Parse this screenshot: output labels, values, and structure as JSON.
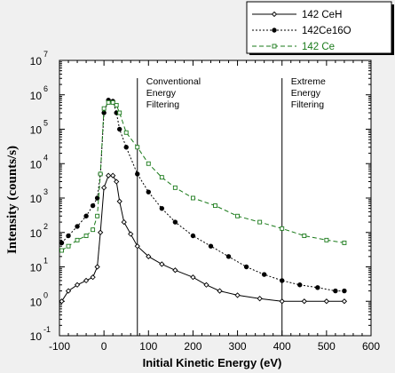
{
  "chart_data": {
    "type": "scatter",
    "title": "",
    "xlabel": "Initial Kinetic Energy (eV)",
    "ylabel": "Intensity (counts/s)",
    "xlim": [
      -100,
      600
    ],
    "ylim_log10": [
      -1,
      7
    ],
    "yscale": "log",
    "x_ticks": [
      -100,
      0,
      100,
      200,
      300,
      400,
      500,
      600
    ],
    "x_tick_labels": [
      "-100",
      "0",
      "100",
      "200",
      "300",
      "400",
      "500",
      "600"
    ],
    "y_tick_exponents": [
      -1,
      0,
      1,
      2,
      3,
      4,
      5,
      6,
      7
    ],
    "y_tick_base": "10",
    "y_tick_exp_labels": [
      "-1",
      "0",
      "1",
      "2",
      "3",
      "4",
      "5",
      "6",
      "7"
    ],
    "legend_position": "top-right",
    "series": [
      {
        "name": "142 CeH",
        "color": "#000000",
        "marker": "diamond",
        "x": [
          -95,
          -80,
          -60,
          -40,
          -25,
          -15,
          -8,
          0,
          10,
          20,
          28,
          35,
          45,
          60,
          75,
          100,
          130,
          160,
          200,
          230,
          260,
          300,
          350,
          400,
          450,
          500,
          540
        ],
        "y": [
          1.0,
          2.0,
          3.0,
          4.0,
          5.0,
          10,
          100,
          2000,
          4500,
          4500,
          3000,
          800,
          200,
          90,
          40,
          20,
          12,
          8,
          5,
          3,
          2,
          1.5,
          1.2,
          1.0,
          1.0,
          1.0,
          1.0
        ]
      },
      {
        "name": "142Ce16O",
        "color": "#000000",
        "marker": "circle",
        "x": [
          -95,
          -80,
          -60,
          -40,
          -25,
          -15,
          -8,
          0,
          10,
          20,
          28,
          35,
          50,
          75,
          100,
          130,
          160,
          200,
          240,
          280,
          320,
          360,
          400,
          440,
          480,
          520,
          540
        ],
        "y": [
          50,
          80,
          150,
          300,
          600,
          1000,
          5000,
          300000,
          700000,
          650000,
          300000,
          100000,
          30000,
          5000,
          1500,
          500,
          200,
          80,
          40,
          20,
          10,
          6,
          4,
          3,
          2.5,
          2,
          2
        ]
      },
      {
        "name": "142 Ce",
        "color": "#1a7a1a",
        "marker": "square",
        "x": [
          -95,
          -80,
          -60,
          -40,
          -25,
          -15,
          -8,
          0,
          10,
          20,
          28,
          35,
          50,
          75,
          100,
          130,
          160,
          200,
          250,
          300,
          350,
          400,
          450,
          500,
          540
        ],
        "y": [
          30,
          40,
          60,
          80,
          120,
          300,
          5000,
          400000,
          600000,
          600000,
          500000,
          300000,
          80000,
          30000,
          10000,
          4000,
          2000,
          1000,
          600,
          300,
          200,
          130,
          80,
          60,
          50
        ]
      }
    ],
    "vertical_lines": [
      {
        "x": 75,
        "label_lines": [
          "Conventional",
          "Energy",
          "Filtering"
        ]
      },
      {
        "x": 400,
        "label_lines": [
          "Extreme",
          "Energy",
          "Filtering"
        ]
      }
    ]
  }
}
